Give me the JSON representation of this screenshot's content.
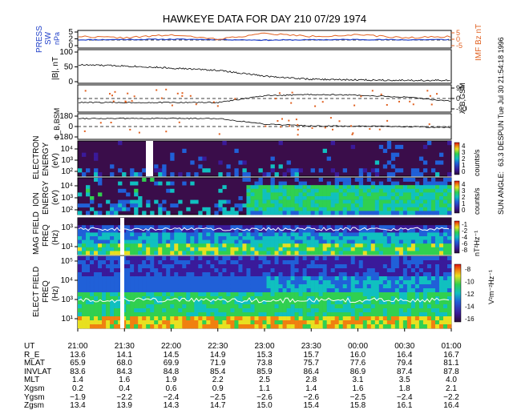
{
  "header": {
    "title": "HAWKEYE DATA FOR DAY 210 07/29 1974"
  },
  "side_text": "63.3  DESPUN  Tue Jul 30 21:54:18 1996",
  "side_label": "SUN ANGLE:",
  "colors": {
    "press": "#1f3fc8",
    "imf": "#e06020",
    "trace": "#000000",
    "white": "#ffffff"
  },
  "panels": {
    "press": {
      "ylabel": "PRESS",
      "ylabel2": "SW",
      "units": "nPa",
      "ticks": [
        "5",
        "2",
        "0"
      ],
      "right_label": "IMF Bz nT",
      "right_ticks": [
        "5",
        "0",
        "-5"
      ]
    },
    "bmag": {
      "ylabel": "|B|, nT",
      "ticks": [
        "100",
        "50",
        "0"
      ]
    },
    "lat": {
      "ylabel": "λ_B,GSM",
      "ticks": [
        "90",
        "0",
        "-90"
      ]
    },
    "phi": {
      "ylabel": "Φ_B,BSM",
      "ticks": [
        "180",
        "0",
        "-180"
      ]
    },
    "electron": {
      "ylabel": "ELECTRON",
      "ylabel2": "ENERGY",
      "units": "(eV)",
      "ticks": [
        "10⁴",
        "10³",
        "10²"
      ],
      "cbar_ticks": [
        "4",
        "3",
        "2",
        "1",
        "0"
      ],
      "cbar_label": "counts/s"
    },
    "ion": {
      "ylabel": "ION",
      "ylabel2": "ENERGY",
      "units": "(eV)",
      "ticks": [
        "10⁴",
        "10³",
        "10²"
      ],
      "cbar_ticks": [
        "4",
        "3",
        "2",
        "1",
        "0"
      ],
      "cbar_label": "counts/s"
    },
    "mag": {
      "ylabel": "MAG FIELD",
      "ylabel2": "FREQ",
      "units": "(Hz)",
      "ticks": [
        "10³",
        "10¹"
      ],
      "cbar_ticks": [
        "-1",
        "-2",
        "-4",
        "-6",
        "-8"
      ],
      "cbar_label": "nT²Hz⁻¹"
    },
    "elect": {
      "ylabel": "ELECT FIELD",
      "ylabel2": "FREQ",
      "units": "(Hz)",
      "ticks": [
        "10⁵",
        "10⁴",
        "10³",
        "10¹"
      ],
      "cbar_ticks": [
        "-8",
        "-10",
        "-12",
        "-14",
        "-16"
      ],
      "cbar_label": "V²m⁻²Hz⁻¹"
    }
  },
  "chart_data": {
    "type": "heatmap",
    "title": "HAWKEYE DATA FOR DAY 210 07/29 1974",
    "x_ticks": [
      "21:00",
      "21:30",
      "22:00",
      "22:30",
      "23:00",
      "23:30",
      "00:00",
      "00:30",
      "01:00"
    ],
    "xlim": [
      "21:00",
      "01:00"
    ],
    "series": [
      {
        "name": "PRESS SW",
        "units": "nPa",
        "ylim": [
          0,
          5
        ],
        "x": [
          "21:00",
          "21:30",
          "22:00",
          "22:30",
          "23:00",
          "23:30",
          "00:00",
          "00:30",
          "01:00"
        ],
        "values": [
          2.3,
          2.4,
          2.5,
          2.4,
          2.2,
          2.3,
          2.4,
          2.3,
          2.4
        ]
      },
      {
        "name": "IMF Bz nT",
        "ylim": [
          -5,
          5
        ],
        "x": [
          "21:00",
          "21:30",
          "22:00",
          "22:30",
          "23:00",
          "23:30",
          "00:00",
          "00:30",
          "01:00"
        ],
        "values": [
          2,
          1,
          3,
          0,
          4,
          2,
          3,
          1,
          2
        ]
      },
      {
        "name": "|B|, nT",
        "ylim": [
          0,
          100
        ],
        "x": [
          "21:00",
          "21:30",
          "22:00",
          "22:30",
          "23:00",
          "23:30",
          "00:00",
          "00:30",
          "01:00"
        ],
        "values": [
          55,
          52,
          45,
          38,
          20,
          10,
          8,
          7,
          6
        ]
      },
      {
        "name": "λ_B,GSM",
        "ylim": [
          -90,
          90
        ],
        "x": [
          "21:00",
          "21:30",
          "22:00",
          "22:30",
          "23:00",
          "23:30",
          "00:00",
          "00:30",
          "01:00"
        ],
        "values": [
          -30,
          -30,
          -30,
          -30,
          20,
          30,
          25,
          10,
          -20
        ]
      },
      {
        "name": "Φ_B,BSM",
        "ylim": [
          -180,
          180
        ],
        "x": [
          "21:00",
          "21:30",
          "22:00",
          "22:30",
          "23:00",
          "23:30",
          "00:00",
          "00:30",
          "01:00"
        ],
        "values": [
          130,
          130,
          130,
          130,
          40,
          10,
          5,
          0,
          -20
        ]
      }
    ],
    "spectrograms": [
      {
        "name": "ELECTRON ENERGY",
        "units": "(eV)",
        "colorbar": "counts/s",
        "clim": [
          0,
          4
        ]
      },
      {
        "name": "ION ENERGY",
        "units": "(eV)",
        "colorbar": "counts/s",
        "clim": [
          0,
          4
        ]
      },
      {
        "name": "MAG FIELD FREQ",
        "units": "(Hz)",
        "colorbar": "nT²Hz⁻¹",
        "clim": [
          -8,
          -1
        ]
      },
      {
        "name": "ELECT FIELD FREQ",
        "units": "(Hz)",
        "colorbar": "V²m⁻²Hz⁻¹",
        "clim": [
          -16,
          -8
        ]
      }
    ],
    "ephemeris": {
      "rows": [
        {
          "label": "UT",
          "values": [
            "21:00",
            "21:30",
            "22:00",
            "22:30",
            "23:00",
            "23:30",
            "00:00",
            "00:30",
            "01:00"
          ]
        },
        {
          "label": "R_E",
          "values": [
            "13.6",
            "14.1",
            "14.5",
            "14.9",
            "15.3",
            "15.7",
            "16.0",
            "16.4",
            "16.7"
          ]
        },
        {
          "label": "MLAT",
          "values": [
            "65.9",
            "68.0",
            "69.9",
            "71.9",
            "73.8",
            "75.7",
            "77.6",
            "79.4",
            "81.1"
          ]
        },
        {
          "label": "INVLAT",
          "values": [
            "83.6",
            "84.3",
            "84.8",
            "85.4",
            "85.9",
            "86.4",
            "86.9",
            "87.4",
            "87.8"
          ]
        },
        {
          "label": "MLT",
          "values": [
            "1.4",
            "1.6",
            "1.9",
            "2.2",
            "2.5",
            "2.8",
            "3.1",
            "3.5",
            "4.0"
          ]
        },
        {
          "label": "Xgsm",
          "values": [
            "0.2",
            "0.4",
            "0.6",
            "0.9",
            "1.1",
            "1.4",
            "1.6",
            "1.8",
            "2.1"
          ]
        },
        {
          "label": "Ygsm",
          "values": [
            "−1.9",
            "−2.2",
            "−2.4",
            "−2.5",
            "−2.6",
            "−2.6",
            "−2.5",
            "−2.4",
            "−2.2"
          ]
        },
        {
          "label": "Zgsm",
          "values": [
            "13.4",
            "13.9",
            "14.3",
            "14.7",
            "15.0",
            "15.4",
            "15.8",
            "16.1",
            "16.4"
          ]
        }
      ]
    }
  }
}
